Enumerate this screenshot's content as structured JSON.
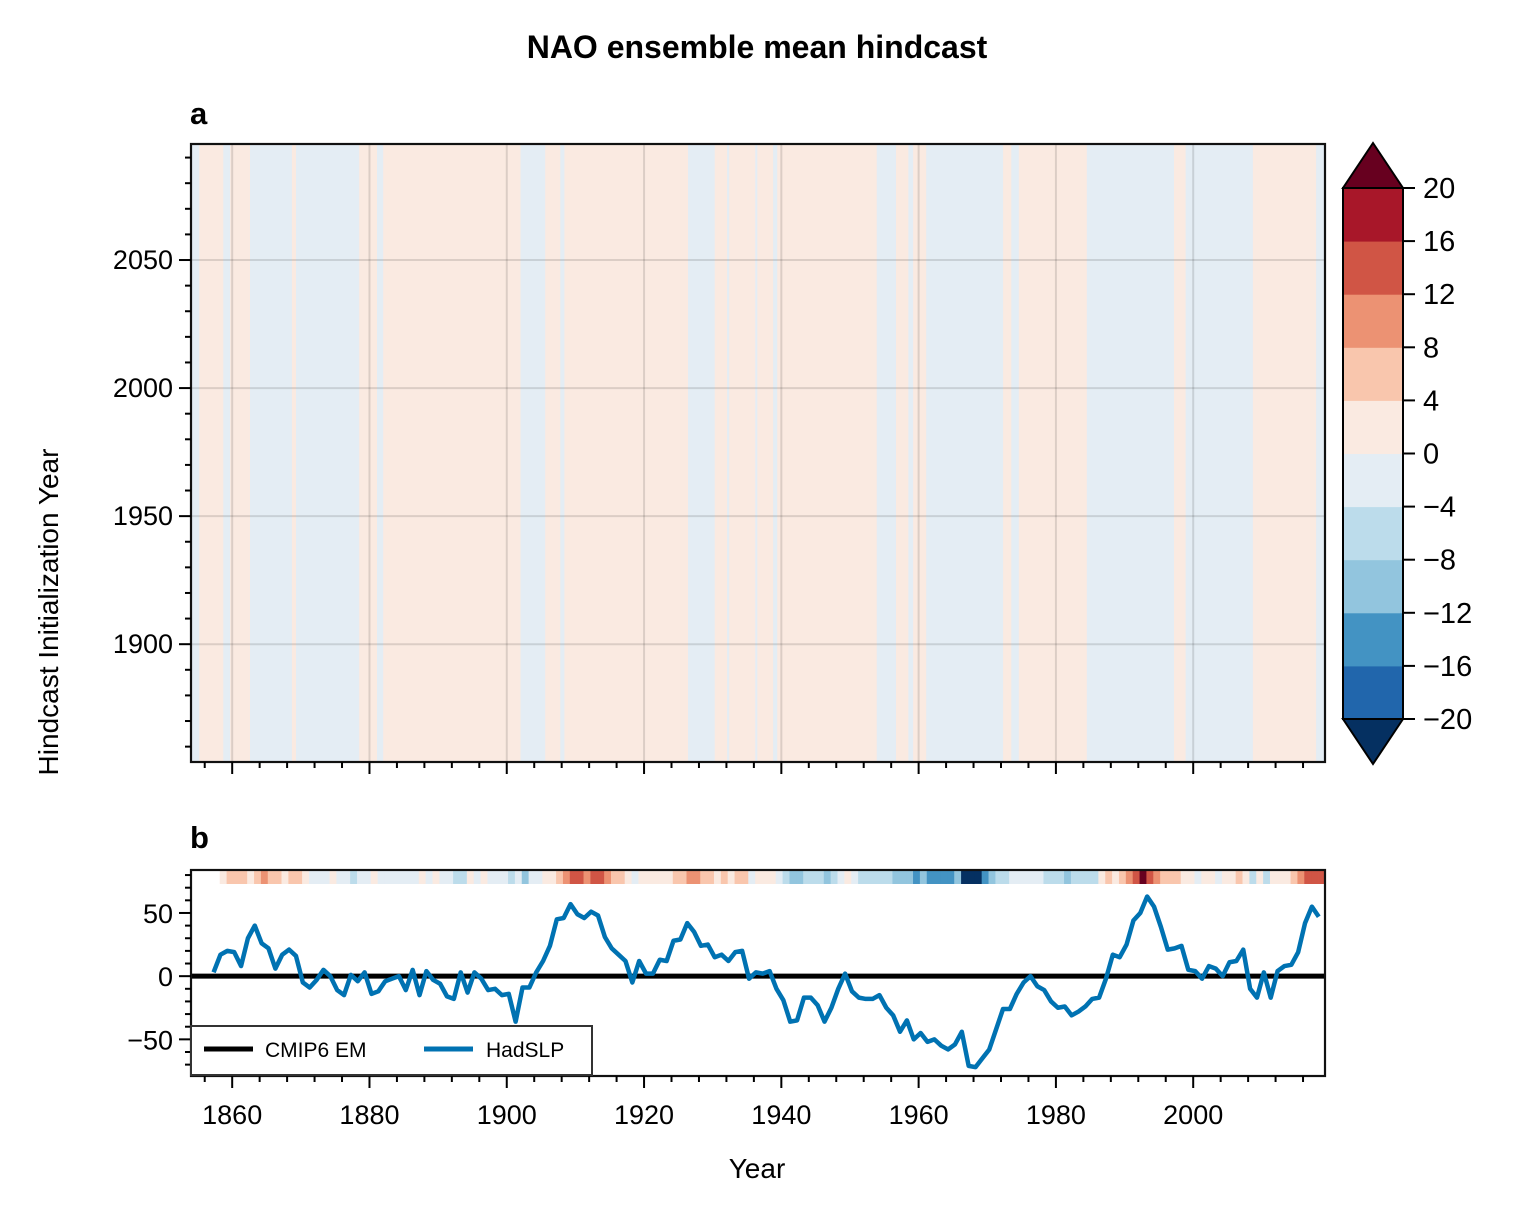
{
  "chart_data": {
    "title": "NAO ensemble mean hindcast",
    "panels": [
      {
        "label": "a",
        "type": "heatmap",
        "xlabel": "",
        "ylabel": "Hindcast Initialization Year",
        "xlim": [
          1854,
          2019.2
        ],
        "ylim": [
          1854,
          2095.3
        ],
        "xticks": [
          1860,
          1880,
          1900,
          1920,
          1940,
          1960,
          1980,
          2000
        ],
        "xticklabels_visible": false,
        "yticks": [
          1900,
          1950,
          2000,
          2050
        ],
        "yticklabels": [
          "1900",
          "1950",
          "2000",
          "2050"
        ],
        "grid": true,
        "note": "Columns are constant in y; each segment spans [x0, x1) years with value in colorbar units",
        "segments": [
          {
            "x0": 1854.0,
            "x1": 1855.2,
            "value": -2
          },
          {
            "x0": 1855.2,
            "x1": 1858.7,
            "value": 2
          },
          {
            "x0": 1858.7,
            "x1": 1859.7,
            "value": -2
          },
          {
            "x0": 1859.7,
            "x1": 1862.6,
            "value": 2
          },
          {
            "x0": 1862.6,
            "x1": 1868.7,
            "value": -2
          },
          {
            "x0": 1868.7,
            "x1": 1869.3,
            "value": 2
          },
          {
            "x0": 1869.3,
            "x1": 1878.5,
            "value": -2
          },
          {
            "x0": 1878.5,
            "x1": 1881.1,
            "value": 2
          },
          {
            "x0": 1881.1,
            "x1": 1882.0,
            "value": -2
          },
          {
            "x0": 1882.0,
            "x1": 1902.0,
            "value": 2
          },
          {
            "x0": 1902.0,
            "x1": 1905.6,
            "value": -2
          },
          {
            "x0": 1905.6,
            "x1": 1907.8,
            "value": 2
          },
          {
            "x0": 1907.8,
            "x1": 1908.4,
            "value": -2
          },
          {
            "x0": 1908.4,
            "x1": 1926.4,
            "value": 2
          },
          {
            "x0": 1926.4,
            "x1": 1930.3,
            "value": -2
          },
          {
            "x0": 1930.3,
            "x1": 1932.1,
            "value": 2
          },
          {
            "x0": 1932.1,
            "x1": 1932.4,
            "value": -2
          },
          {
            "x0": 1932.4,
            "x1": 1936.2,
            "value": 2
          },
          {
            "x0": 1936.2,
            "x1": 1936.5,
            "value": -2
          },
          {
            "x0": 1936.5,
            "x1": 1938.8,
            "value": 2
          },
          {
            "x0": 1938.8,
            "x1": 1939.4,
            "value": -2
          },
          {
            "x0": 1939.4,
            "x1": 1953.9,
            "value": 2
          },
          {
            "x0": 1953.9,
            "x1": 1956.7,
            "value": -2
          },
          {
            "x0": 1956.7,
            "x1": 1958.5,
            "value": 2
          },
          {
            "x0": 1958.5,
            "x1": 1959.2,
            "value": -2
          },
          {
            "x0": 1959.2,
            "x1": 1961.1,
            "value": 2
          },
          {
            "x0": 1961.1,
            "x1": 1972.3,
            "value": -2
          },
          {
            "x0": 1972.3,
            "x1": 1973.5,
            "value": 2
          },
          {
            "x0": 1973.5,
            "x1": 1974.6,
            "value": -2
          },
          {
            "x0": 1974.6,
            "x1": 1984.5,
            "value": 2
          },
          {
            "x0": 1984.5,
            "x1": 1997.2,
            "value": -2
          },
          {
            "x0": 1997.2,
            "x1": 1998.9,
            "value": 2
          },
          {
            "x0": 1998.9,
            "x1": 2008.7,
            "value": -2
          },
          {
            "x0": 2008.7,
            "x1": 2017.9,
            "value": 2
          },
          {
            "x0": 2017.9,
            "x1": 2019.2,
            "value": -2
          }
        ]
      },
      {
        "label": "b",
        "type": "line",
        "xlabel": "Year",
        "ylabel": "",
        "xlim": [
          1854,
          2019.2
        ],
        "ylim": [
          -79,
          84
        ],
        "xticks": [
          1860,
          1880,
          1900,
          1920,
          1940,
          1960,
          1980,
          2000
        ],
        "xticklabels": [
          "1860",
          "1880",
          "1900",
          "1920",
          "1940",
          "1960",
          "1980",
          "2000"
        ],
        "yticks": [
          -50,
          0,
          50
        ],
        "yticklabels": [
          "−50",
          "0",
          "50"
        ],
        "grid": false,
        "legend": {
          "location": "lower-left",
          "entries": [
            "CMIP6 EM",
            "HadSLP"
          ]
        },
        "series": [
          {
            "name": "CMIP6 EM",
            "color": "#000000",
            "constant": 0
          },
          {
            "name": "HadSLP",
            "color": "#0072b2",
            "x_start": 1857,
            "values": [
              3,
              17,
              20,
              19,
              8,
              30,
              40,
              26,
              22,
              6,
              17,
              21,
              16,
              -5,
              -9,
              -3,
              5,
              0,
              -11,
              -15,
              1,
              -4,
              3,
              -14,
              -12,
              -4,
              -2,
              0,
              -11,
              5,
              -15,
              4,
              -3,
              -6,
              -16,
              -18,
              3,
              -13,
              3,
              -2,
              -11,
              -10,
              -15,
              -14,
              -36,
              -9,
              -9,
              3,
              12,
              24,
              45,
              46,
              57,
              49,
              46,
              51,
              48,
              31,
              22,
              17,
              12,
              -5,
              12,
              2,
              2,
              13,
              12,
              28,
              29,
              42,
              35,
              24,
              25,
              15,
              17,
              12,
              19,
              20,
              -2,
              3,
              2,
              4,
              -10,
              -19,
              -36,
              -35,
              -17,
              -17,
              -23,
              -36,
              -25,
              -10,
              2,
              -12,
              -17,
              -18,
              -18,
              -15,
              -25,
              -31,
              -44,
              -35,
              -50,
              -45,
              -52,
              -50,
              -55,
              -58,
              -54,
              -44,
              -71,
              -72,
              -65,
              -58,
              -42,
              -26,
              -26,
              -14,
              -5,
              0,
              -8,
              -11,
              -20,
              -25,
              -24,
              -31,
              -28,
              -24,
              -18,
              -17,
              -2,
              17,
              15,
              25,
              44,
              50,
              63,
              55,
              39,
              21,
              22,
              24,
              5,
              4,
              -2,
              8,
              6,
              0,
              11,
              12,
              21,
              -10,
              -17,
              3,
              -17,
              4,
              8,
              9,
              19,
              42,
              55,
              47
            ]
          }
        ],
        "stripe": {
          "x_start": 1856,
          "values": [
            2,
            6,
            6,
            6,
            2,
            6,
            10,
            6,
            6,
            2,
            6,
            6,
            2,
            -2,
            -2,
            -2,
            2,
            -2,
            -2,
            -6,
            -2,
            -2,
            2,
            -2,
            -2,
            -2,
            -2,
            -2,
            -2,
            2,
            -2,
            2,
            -2,
            -2,
            -6,
            -6,
            2,
            -2,
            2,
            -2,
            -2,
            -2,
            -6,
            -2,
            -10,
            -2,
            -2,
            2,
            2,
            6,
            10,
            14,
            14,
            10,
            14,
            14,
            10,
            6,
            6,
            2,
            -2,
            2,
            2,
            2,
            2,
            2,
            6,
            6,
            10,
            10,
            6,
            6,
            2,
            6,
            2,
            6,
            6,
            -2,
            2,
            2,
            2,
            -2,
            -6,
            -10,
            -10,
            -6,
            -6,
            -6,
            -10,
            -6,
            -2,
            2,
            -2,
            -6,
            -6,
            -6,
            -6,
            -6,
            -10,
            -10,
            -10,
            -14,
            -10,
            -14,
            -14,
            -14,
            -14,
            -10,
            -22,
            -22,
            -22,
            -14,
            -10,
            -6,
            -6,
            -2,
            -2,
            -2,
            -2,
            -2,
            -6,
            -6,
            -6,
            -10,
            -6,
            -6,
            -6,
            -6,
            2,
            6,
            2,
            6,
            10,
            14,
            22,
            14,
            10,
            6,
            6,
            6,
            2,
            2,
            -2,
            2,
            2,
            -2,
            2,
            2,
            6,
            2,
            -6,
            2,
            -6,
            2,
            2,
            2,
            6,
            10,
            14,
            14,
            14
          ]
        }
      }
    ],
    "colorbar": {
      "levels": [
        -20,
        -16,
        -12,
        -8,
        -4,
        0,
        4,
        8,
        12,
        16,
        20
      ],
      "ticklabels": [
        "−20",
        "−16",
        "−12",
        "−8",
        "−4",
        "0",
        "4",
        "8",
        "12",
        "16",
        "20"
      ],
      "extend": "both",
      "colors": [
        "#053061",
        "#2166ac",
        "#4393c3",
        "#92c5de",
        "#bcdceb",
        "#e4edf4",
        "#faeae1",
        "#f9c6ad",
        "#ec9273",
        "#d05545",
        "#a81729",
        "#67001f"
      ]
    }
  }
}
